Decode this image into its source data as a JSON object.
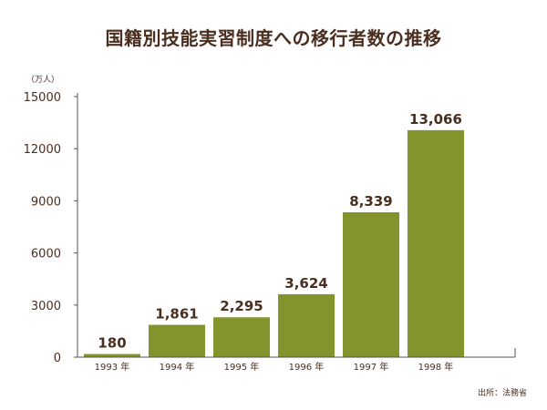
{
  "chart_data": {
    "type": "bar",
    "title": "国籍別技能実習制度への移行者数の推移",
    "ylabel": "（万人）",
    "xlabel": "",
    "categories": [
      "1993 年",
      "1994 年",
      "1995 年",
      "1996 年",
      "1997 年",
      "1998 年"
    ],
    "values": [
      180,
      1861,
      2295,
      3624,
      8339,
      13066
    ],
    "value_labels": [
      "180",
      "1,861",
      "2,295",
      "3,624",
      "8,339",
      "13,066"
    ],
    "ylim": [
      0,
      15000
    ],
    "yticks": [
      0,
      3000,
      6000,
      9000,
      12000,
      15000
    ],
    "ytick_labels": [
      "0",
      "3000",
      "6000",
      "9000",
      "12000",
      "15000"
    ],
    "grid": false,
    "legend": "none",
    "bar_color": "#84942c",
    "text_color": "#4a2e1f",
    "source": "出所：法務省"
  }
}
